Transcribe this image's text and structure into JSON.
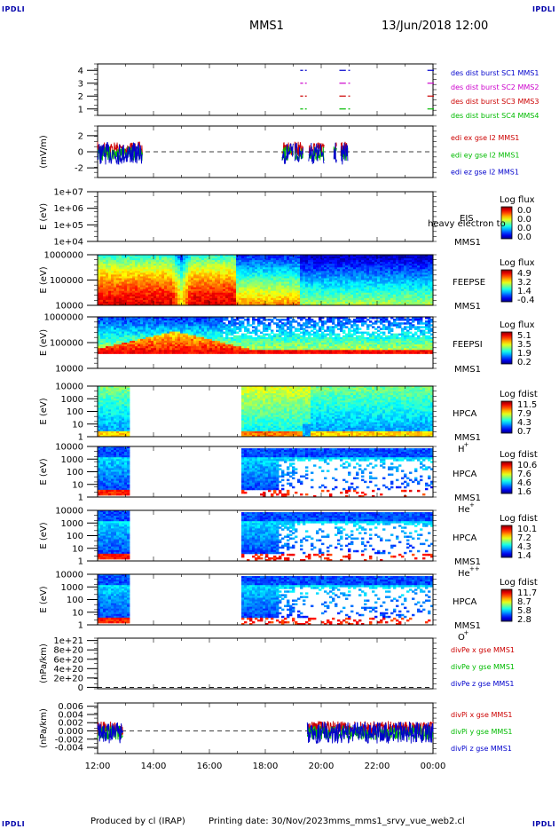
{
  "header": {
    "corner_label": "IPDLI",
    "spacecraft": "MMS1",
    "datetime": "13/Jun/2018 12:00"
  },
  "footer": {
    "produced_by": "Produced by cl (IRAP)",
    "printing_date": "Printing date: 30/Nov/2023",
    "script_name": "mms_mms1_srvy_vue_web2.cl"
  },
  "chart_data": {
    "type": "heatmap",
    "x_ticks": [
      "12:00",
      "14:00",
      "16:00",
      "18:00",
      "20:00",
      "22:00",
      "00:00"
    ],
    "panels": [
      {
        "id": "burst",
        "kind": "burst",
        "ylabel": "",
        "y_ticks": [
          "4",
          "3",
          "2",
          "1"
        ],
        "y_range": [
          0.5,
          4.5
        ],
        "legend": [
          {
            "text": "des dist burst SC1 MMS1",
            "color": "#0000cc"
          },
          {
            "text": "des dist burst SC2 MMS2",
            "color": "#cc00cc"
          },
          {
            "text": "des dist burst SC3 MMS3",
            "color": "#cc0000"
          },
          {
            "text": "des dist burst SC4 MMS4",
            "color": "#00bb00"
          }
        ],
        "intervals_hours": [
          [
            19.25,
            19.32
          ],
          [
            19.42,
            19.45
          ],
          [
            20.65,
            20.85
          ],
          [
            20.97,
            21.0
          ],
          [
            23.8,
            24.0
          ]
        ]
      },
      {
        "id": "efield",
        "kind": "lines",
        "ylabel": "(mV/m)",
        "y_ticks": [
          "2",
          "0",
          "-2"
        ],
        "y_range": [
          -3.2,
          3.2
        ],
        "legend": [
          {
            "text": "edi ex gse l2 MMS1",
            "color": "#cc0000"
          },
          {
            "text": "edi ey gse l2 MMS1",
            "color": "#00bb00"
          },
          {
            "text": "edi ez gse l2 MMS1",
            "color": "#0000cc"
          }
        ],
        "data_intervals_hours": [
          [
            12.0,
            13.6
          ],
          [
            18.6,
            19.0
          ],
          [
            19.05,
            19.35
          ],
          [
            19.55,
            20.1
          ],
          [
            20.45,
            20.55
          ],
          [
            20.7,
            20.95
          ]
        ]
      },
      {
        "id": "eis",
        "kind": "empty_spec",
        "ylabel": "E (eV)",
        "y_ticks": [
          "1e+07",
          "1e+06",
          "1e+05",
          "1e+04"
        ],
        "instrument": "EIS",
        "spacecraft": "MMS1",
        "overlay_text": "heavy electron to",
        "colorbar_title": "Log flux",
        "colorbar_ticks": [
          "0.0",
          "0.0",
          "0.0",
          "0.0"
        ]
      },
      {
        "id": "feepse",
        "kind": "spec",
        "ylabel": "E (eV)",
        "y_ticks": [
          "1000000",
          "100000",
          "10000"
        ],
        "instrument": "FEEPSE",
        "spacecraft": "MMS1",
        "colorbar_title": "Log flux",
        "colorbar_ticks": [
          "4.9",
          "3.2",
          "1.4",
          "-0.4"
        ]
      },
      {
        "id": "feepsi",
        "kind": "spec",
        "ylabel": "E (eV)",
        "y_ticks": [
          "1000000",
          "100000",
          "10000"
        ],
        "instrument": "FEEPSI",
        "spacecraft": "MMS1",
        "colorbar_title": "Log flux",
        "colorbar_ticks": [
          "5.1",
          "3.5",
          "1.9",
          "0.2"
        ]
      },
      {
        "id": "hpca_h",
        "kind": "spec",
        "ylabel": "E (eV)",
        "y_ticks": [
          "10000",
          "1000",
          "100",
          "10",
          "1"
        ],
        "instrument": "HPCA",
        "spacecraft": "MMS1",
        "species": "H",
        "charge": "+",
        "colorbar_title": "Log fdist",
        "colorbar_ticks": [
          "11.5",
          "7.9",
          "4.3",
          "0.7"
        ]
      },
      {
        "id": "hpca_he1",
        "kind": "spec",
        "ylabel": "E (eV)",
        "y_ticks": [
          "10000",
          "1000",
          "100",
          "10",
          "1"
        ],
        "instrument": "HPCA",
        "spacecraft": "MMS1",
        "species": "He",
        "charge": "+",
        "colorbar_title": "Log fdist",
        "colorbar_ticks": [
          "10.6",
          "7.6",
          "4.6",
          "1.6"
        ]
      },
      {
        "id": "hpca_he2",
        "kind": "spec",
        "ylabel": "E (eV)",
        "y_ticks": [
          "10000",
          "1000",
          "100",
          "10",
          "1"
        ],
        "instrument": "HPCA",
        "spacecraft": "MMS1",
        "species": "He",
        "charge": "++",
        "colorbar_title": "Log fdist",
        "colorbar_ticks": [
          "10.1",
          "7.2",
          "4.3",
          "1.4"
        ]
      },
      {
        "id": "hpca_o",
        "kind": "spec",
        "ylabel": "E (eV)",
        "y_ticks": [
          "10000",
          "1000",
          "100",
          "10",
          "1"
        ],
        "instrument": "HPCA",
        "spacecraft": "MMS1",
        "species": "O",
        "charge": "+",
        "colorbar_title": "Log fdist",
        "colorbar_ticks": [
          "11.7",
          "8.7",
          "5.8",
          "2.8"
        ]
      },
      {
        "id": "divpe",
        "kind": "lines",
        "ylabel": "(nPa/km)",
        "y_ticks": [
          "1e+21",
          "8e+20",
          "6e+20",
          "4e+20",
          "2e+20",
          "0"
        ],
        "y_range": [
          -3e+19,
          1.05e+21
        ],
        "legend": [
          {
            "text": "divPe x gse MMS1",
            "color": "#cc0000"
          },
          {
            "text": "divPe y gse MMS1",
            "color": "#00bb00"
          },
          {
            "text": "divPe z gse MMS1",
            "color": "#0000cc"
          }
        ],
        "data_intervals_hours": []
      },
      {
        "id": "divpi",
        "kind": "lines",
        "ylabel": "(nPa/km)",
        "y_ticks": [
          "0.006",
          "0.004",
          "0.002",
          "0.000",
          "-0.002",
          "-0.004"
        ],
        "y_range": [
          -0.0055,
          0.0068
        ],
        "legend": [
          {
            "text": "divPi x gse MMS1",
            "color": "#cc0000"
          },
          {
            "text": "divPi y gse MMS1",
            "color": "#00bb00"
          },
          {
            "text": "divPi z gse MMS1",
            "color": "#0000cc"
          }
        ],
        "data_intervals_hours": [
          [
            12.0,
            12.9
          ],
          [
            19.5,
            24.0
          ]
        ]
      }
    ]
  }
}
